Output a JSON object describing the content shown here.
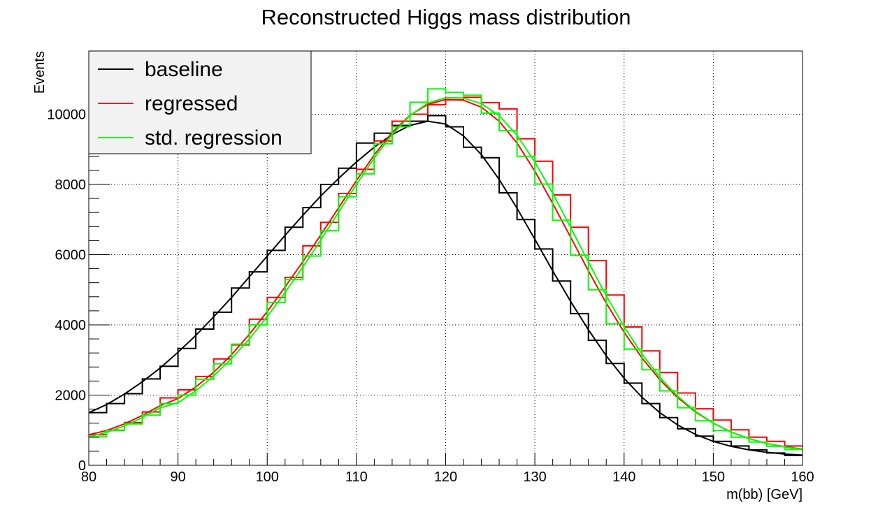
{
  "chart_data": {
    "type": "line",
    "title": "Reconstructed Higgs mass distribution",
    "xlabel": "m(bb) [GeV]",
    "ylabel": "Events",
    "xlim": [
      80,
      160
    ],
    "ylim": [
      0,
      11800
    ],
    "x_ticks": [
      80,
      90,
      100,
      110,
      120,
      130,
      140,
      150,
      160
    ],
    "x_tick_labels": [
      "80",
      "90",
      "100",
      "110",
      "120",
      "130",
      "140",
      "150",
      "160"
    ],
    "y_ticks": [
      0,
      2000,
      4000,
      6000,
      8000,
      10000
    ],
    "y_tick_labels": [
      "0",
      "2000",
      "4000",
      "6000",
      "8000",
      "10000"
    ],
    "grid": true,
    "legend_position": "top-left",
    "bin_edges": [
      80,
      82,
      84,
      86,
      88,
      90,
      92,
      94,
      96,
      98,
      100,
      102,
      104,
      106,
      108,
      110,
      112,
      114,
      116,
      118,
      120,
      122,
      124,
      126,
      128,
      130,
      132,
      134,
      136,
      138,
      140,
      142,
      144,
      146,
      148,
      150,
      152,
      154,
      156,
      158,
      160
    ],
    "series": [
      {
        "name": "baseline",
        "color": "#000000",
        "histogram": [
          1500,
          1760,
          2040,
          2460,
          2820,
          3330,
          3880,
          4360,
          5050,
          5510,
          6120,
          6780,
          7340,
          8000,
          8460,
          9180,
          9460,
          9680,
          9800,
          9960,
          9640,
          9060,
          8760,
          7760,
          7000,
          6160,
          5250,
          4320,
          3560,
          2900,
          2340,
          1760,
          1360,
          1040,
          830,
          680,
          550,
          440,
          350,
          280
        ],
        "fit_x": [
          80,
          82,
          84,
          86,
          88,
          90,
          92,
          94,
          96,
          98,
          100,
          102,
          104,
          106,
          108,
          110,
          112,
          114,
          116,
          118,
          120,
          122,
          124,
          126,
          128,
          130,
          132,
          134,
          136,
          138,
          140,
          142,
          144,
          146,
          148,
          150,
          152,
          154,
          156,
          158,
          160
        ],
        "fit_y": [
          1500,
          1730,
          2030,
          2380,
          2770,
          3220,
          3700,
          4230,
          4780,
          5370,
          5960,
          6550,
          7120,
          7670,
          8170,
          8640,
          9060,
          9420,
          9680,
          9800,
          9720,
          9380,
          8850,
          8140,
          7320,
          6440,
          5540,
          4670,
          3860,
          3120,
          2480,
          1940,
          1500,
          1150,
          880,
          680,
          540,
          440,
          370,
          320,
          290
        ]
      },
      {
        "name": "regressed",
        "color": "#ff0000",
        "histogram": [
          870,
          1000,
          1220,
          1520,
          1920,
          2150,
          2530,
          3030,
          3430,
          4160,
          4780,
          5350,
          6250,
          6920,
          7740,
          8430,
          9240,
          9800,
          10000,
          10270,
          10410,
          10480,
          10330,
          10150,
          9300,
          8660,
          7700,
          6780,
          5830,
          4850,
          3940,
          3260,
          2640,
          2060,
          1610,
          1290,
          1010,
          800,
          680,
          550
        ],
        "fit_x": [
          80,
          82,
          84,
          86,
          88,
          90,
          92,
          94,
          96,
          98,
          100,
          102,
          104,
          106,
          108,
          110,
          112,
          114,
          116,
          118,
          120,
          122,
          124,
          126,
          128,
          130,
          132,
          134,
          136,
          138,
          140,
          142,
          144,
          146,
          148,
          150,
          152,
          154,
          156,
          158,
          160
        ],
        "fit_y": [
          870,
          990,
          1180,
          1420,
          1700,
          1900,
          2230,
          2650,
          3150,
          3730,
          4380,
          5080,
          5800,
          6560,
          7330,
          8110,
          8840,
          9480,
          9970,
          10280,
          10420,
          10400,
          10200,
          9800,
          9180,
          8380,
          7460,
          6500,
          5540,
          4620,
          3790,
          3060,
          2440,
          1930,
          1520,
          1200,
          950,
          760,
          620,
          530,
          460
        ]
      },
      {
        "name": "std. regression",
        "color": "#00ff00",
        "histogram": [
          810,
          990,
          1180,
          1430,
          1760,
          2000,
          2450,
          2890,
          3450,
          4000,
          4640,
          5290,
          5960,
          6680,
          7650,
          8300,
          9160,
          9640,
          10340,
          10720,
          10620,
          10540,
          10030,
          9530,
          8800,
          8010,
          6980,
          5980,
          5000,
          4030,
          3310,
          2720,
          2120,
          1640,
          1270,
          990,
          800,
          660,
          540,
          450
        ],
        "fit_x": [
          80,
          82,
          84,
          86,
          88,
          90,
          92,
          94,
          96,
          98,
          100,
          102,
          104,
          106,
          108,
          110,
          112,
          114,
          116,
          118,
          120,
          122,
          124,
          126,
          128,
          130,
          132,
          134,
          136,
          138,
          140,
          142,
          144,
          146,
          148,
          150,
          152,
          154,
          156,
          158,
          160
        ],
        "fit_y": [
          810,
          940,
          1120,
          1360,
          1640,
          1780,
          2120,
          2550,
          3040,
          3600,
          4240,
          4920,
          5650,
          6420,
          7210,
          8000,
          8750,
          9420,
          9960,
          10320,
          10470,
          10460,
          10300,
          9960,
          9400,
          8640,
          7750,
          6780,
          5790,
          4830,
          3950,
          3170,
          2510,
          1970,
          1540,
          1200,
          950,
          760,
          620,
          520,
          450
        ]
      }
    ]
  }
}
